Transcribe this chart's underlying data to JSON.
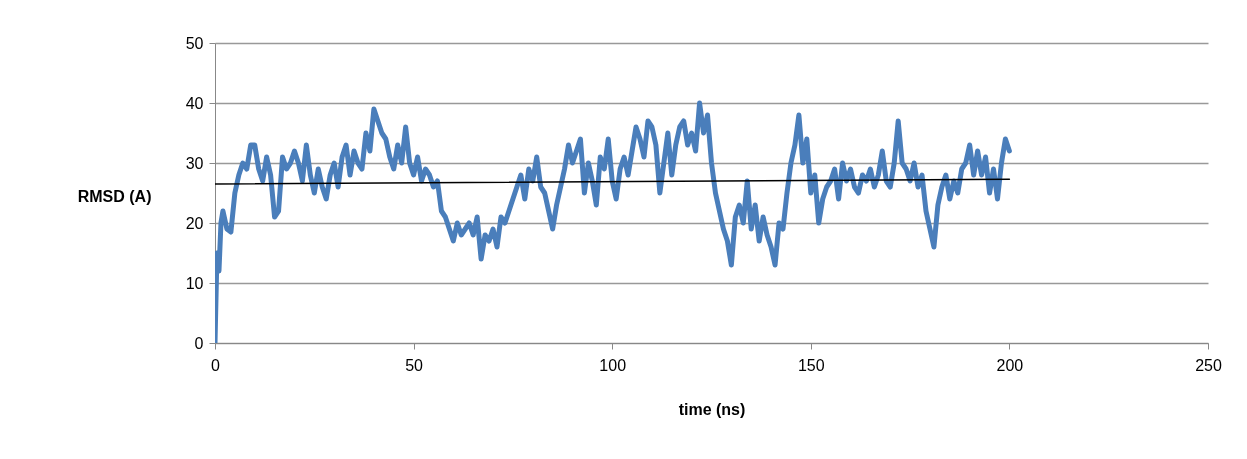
{
  "chart_data": {
    "type": "line",
    "xlabel": "time (ns)",
    "ylabel": "RMSD (A)",
    "xlim": [
      0,
      250
    ],
    "xticks": [
      0,
      50,
      100,
      150,
      200,
      250
    ],
    "ylim": [
      0,
      50
    ],
    "yticks": [
      0,
      10,
      20,
      30,
      40,
      50
    ],
    "grid": "y",
    "x": [
      0,
      0.5,
      1,
      1.5,
      2,
      3,
      4,
      5,
      6,
      7,
      8,
      9,
      10,
      11,
      12,
      13,
      14,
      15,
      16,
      17,
      18,
      19,
      20,
      21,
      22,
      23,
      24,
      25,
      26,
      27,
      28,
      29,
      30,
      31,
      32,
      33,
      34,
      35,
      36,
      37,
      38,
      39,
      40,
      41,
      42,
      43,
      44,
      45,
      46,
      47,
      48,
      49,
      50,
      51,
      52,
      53,
      54,
      55,
      56,
      57,
      58,
      59,
      60,
      61,
      62,
      63,
      64,
      65,
      66,
      67,
      68,
      69,
      70,
      71,
      72,
      73,
      74,
      75,
      76,
      77,
      78,
      79,
      80,
      81,
      82,
      83,
      84,
      85,
      86,
      87,
      88,
      89,
      90,
      91,
      92,
      93,
      94,
      95,
      96,
      97,
      98,
      99,
      100,
      101,
      102,
      103,
      104,
      105,
      106,
      107,
      108,
      109,
      110,
      111,
      112,
      113,
      114,
      115,
      116,
      117,
      118,
      119,
      120,
      121,
      122,
      123,
      124,
      125,
      126,
      127,
      128,
      129,
      130,
      131,
      132,
      133,
      134,
      135,
      136,
      137,
      138,
      139,
      140,
      141,
      142,
      143,
      144,
      145,
      146,
      147,
      148,
      149,
      150,
      151,
      152,
      153,
      154,
      155,
      156,
      157,
      158,
      159,
      160,
      161,
      162,
      163,
      164,
      165,
      166,
      167,
      168,
      169,
      170,
      171,
      172,
      173,
      174,
      175,
      176,
      177,
      178,
      179,
      180,
      181,
      182,
      183,
      184,
      185,
      186,
      187,
      188,
      189,
      190,
      191,
      192,
      193,
      194,
      195,
      196,
      197,
      198,
      199,
      200
    ],
    "series": [
      {
        "color": "#4a7ebb",
        "values": [
          0,
          15,
          12,
          20,
          22,
          19,
          18.5,
          25,
          28,
          30,
          29,
          33,
          33,
          29,
          27,
          31,
          28,
          21,
          22,
          31,
          29,
          30,
          32,
          30,
          27,
          33,
          28,
          25,
          29,
          26,
          24,
          28,
          30,
          26,
          31,
          33,
          28,
          32,
          30,
          29,
          35,
          32,
          39,
          37,
          35,
          34,
          31,
          29,
          33,
          30,
          36,
          30,
          28,
          31,
          27,
          29,
          28,
          26,
          27,
          22,
          21,
          19,
          17,
          20,
          18,
          19,
          20,
          18,
          21,
          14,
          18,
          17,
          19,
          16,
          21,
          20,
          22,
          24,
          26,
          28,
          24,
          29,
          27,
          31,
          26,
          25,
          22,
          19,
          23,
          26,
          29,
          33,
          30,
          32,
          34,
          25,
          30,
          27,
          23,
          31,
          29,
          34,
          27,
          24,
          29,
          31,
          28,
          32,
          36,
          34,
          31,
          37,
          36,
          33,
          25,
          30,
          35,
          28,
          33,
          36,
          37,
          33,
          35,
          32,
          40,
          35,
          38,
          30,
          25,
          22,
          19,
          17,
          13,
          21,
          23,
          20,
          27,
          19,
          23,
          17,
          21,
          18,
          16,
          13,
          20,
          19,
          25,
          30,
          33,
          38,
          30,
          34,
          25,
          28,
          20,
          24,
          26,
          27,
          29,
          24,
          30,
          27,
          29,
          26,
          25,
          28,
          27,
          29,
          26,
          28,
          32,
          27,
          26,
          30,
          37,
          30,
          29,
          27,
          30,
          26,
          28,
          22,
          19,
          16,
          23,
          26,
          28,
          24,
          27,
          25,
          29,
          30,
          33,
          28,
          32,
          28,
          31,
          25,
          29,
          24,
          30,
          34,
          32
        ]
      },
      {
        "type": "line",
        "color": "#000000",
        "x": [
          0,
          200
        ],
        "values": [
          26.5,
          27.3
        ]
      }
    ]
  }
}
